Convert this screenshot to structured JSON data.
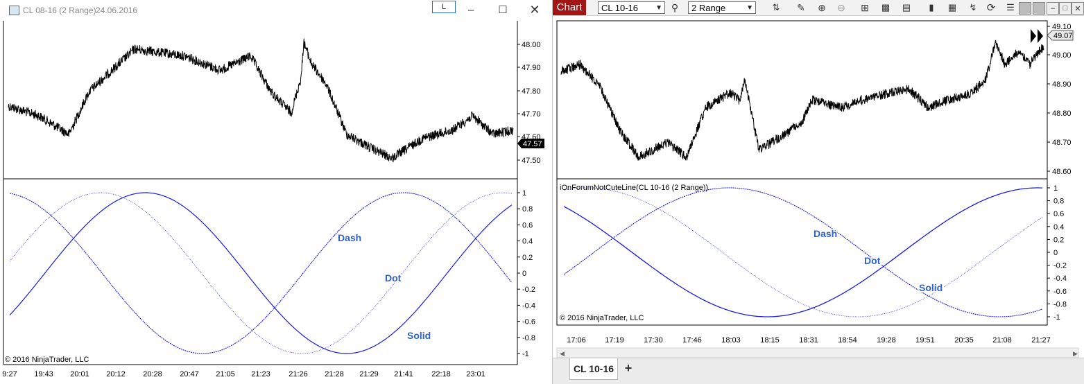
{
  "left_window": {
    "title": "CL 08-16 (2 Range)",
    "date": "24.06.2016",
    "l_button": "L",
    "price_axis": [
      "48.00",
      "47.90",
      "47.80",
      "47.70",
      "47.60",
      "47.50"
    ],
    "last_price": "47.57",
    "osc_axis": [
      "1",
      "0.8",
      "0.6",
      "0.4",
      "0.2",
      "0",
      "-0.2",
      "-0.4",
      "-0.6",
      "-0.8",
      "-1"
    ],
    "time_axis": [
      "9:27",
      "19:43",
      "20:01",
      "20:12",
      "20:28",
      "20:47",
      "21:05",
      "21:23",
      "21:26",
      "21:28",
      "21:29",
      "21:41",
      "22:18",
      "23:01"
    ],
    "labels": {
      "dash": "Dash",
      "dot": "Dot",
      "solid": "Solid"
    },
    "copyright": "© 2016 NinjaTrader, LLC"
  },
  "right_window": {
    "chart_tab": "Chart",
    "instrument": "CL 10-16",
    "interval": "2 Range",
    "price_axis": [
      "49.10",
      "49.00",
      "48.90",
      "48.80",
      "48.70",
      "48.60"
    ],
    "last_price": "49.07",
    "indicator_title": "iOnForumNotCuteLine(CL 10-16 (2 Range))",
    "osc_axis": [
      "1",
      "0.8",
      "0.6",
      "0.4",
      "0.2",
      "0",
      "-0.2",
      "-0.4",
      "-0.6",
      "-0.8",
      "-1"
    ],
    "time_axis": [
      "17:06",
      "17:19",
      "17:30",
      "17:46",
      "18:03",
      "18:15",
      "18:31",
      "18:54",
      "19:28",
      "19:51",
      "20:35",
      "21:08",
      "21:27"
    ],
    "labels": {
      "dash": "Dash",
      "dot": "Dot",
      "solid": "Solid"
    },
    "copyright": "© 2016 NinjaTrader, LLC",
    "bottom_tab": "CL 10-16",
    "add_tab": "+"
  },
  "colors": {
    "line": "#1a1ae6",
    "tab_red": "#a11515",
    "text_blue": "#2f62c8"
  }
}
